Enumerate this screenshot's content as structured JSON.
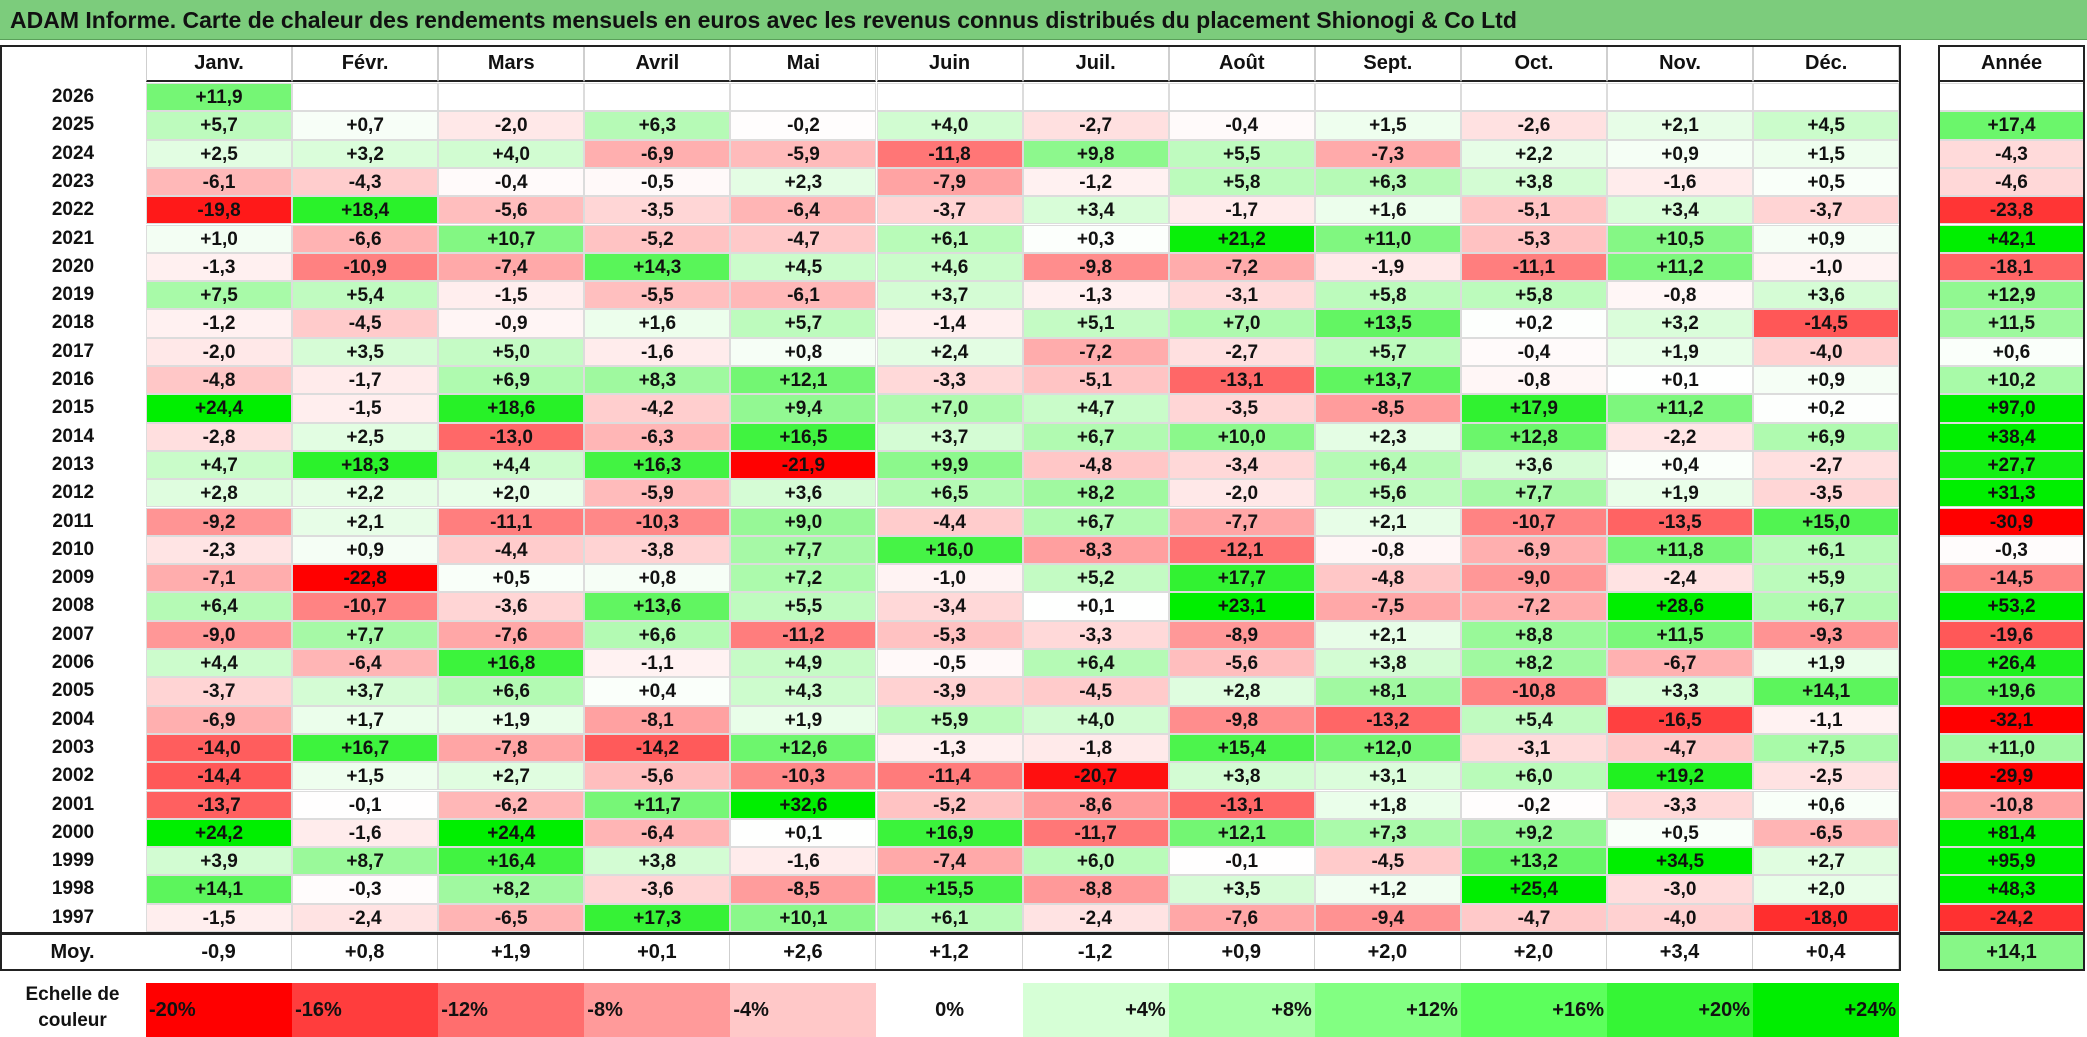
{
  "title": "ADAM Informe. Carte de chaleur des rendements mensuels en euros avec les revenus connus distribués du placement Shionogi & Co Ltd",
  "chart_data": {
    "type": "heatmap",
    "months": [
      "Janv.",
      "Févr.",
      "Mars",
      "Avril",
      "Mai",
      "Juin",
      "Juil.",
      "Août",
      "Sept.",
      "Oct.",
      "Nov.",
      "Déc."
    ],
    "year_header": "Année",
    "rows": [
      {
        "year": "2026",
        "values": [
          "+11,9",
          null,
          null,
          null,
          null,
          null,
          null,
          null,
          null,
          null,
          null,
          null
        ],
        "annual": null
      },
      {
        "year": "2025",
        "values": [
          "+5,7",
          "+0,7",
          "-2,0",
          "+6,3",
          "-0,2",
          "+4,0",
          "-2,7",
          "-0,4",
          "+1,5",
          "-2,6",
          "+2,1",
          "+4,5"
        ],
        "annual": "+17,4"
      },
      {
        "year": "2024",
        "values": [
          "+2,5",
          "+3,2",
          "+4,0",
          "-6,9",
          "-5,9",
          "-11,8",
          "+9,8",
          "+5,5",
          "-7,3",
          "+2,2",
          "+0,9",
          "+1,5"
        ],
        "annual": "-4,3"
      },
      {
        "year": "2023",
        "values": [
          "-6,1",
          "-4,3",
          "-0,4",
          "-0,5",
          "+2,3",
          "-7,9",
          "-1,2",
          "+5,8",
          "+6,3",
          "+3,8",
          "-1,6",
          "+0,5"
        ],
        "annual": "-4,6"
      },
      {
        "year": "2022",
        "values": [
          "-19,8",
          "+18,4",
          "-5,6",
          "-3,5",
          "-6,4",
          "-3,7",
          "+3,4",
          "-1,7",
          "+1,6",
          "-5,1",
          "+3,4",
          "-3,7"
        ],
        "annual": "-23,8"
      },
      {
        "year": "2021",
        "values": [
          "+1,0",
          "-6,6",
          "+10,7",
          "-5,2",
          "-4,7",
          "+6,1",
          "+0,3",
          "+21,2",
          "+11,0",
          "-5,3",
          "+10,5",
          "+0,9"
        ],
        "annual": "+42,1"
      },
      {
        "year": "2020",
        "values": [
          "-1,3",
          "-10,9",
          "-7,4",
          "+14,3",
          "+4,5",
          "+4,6",
          "-9,8",
          "-7,2",
          "-1,9",
          "-11,1",
          "+11,2",
          "-1,0"
        ],
        "annual": "-18,1"
      },
      {
        "year": "2019",
        "values": [
          "+7,5",
          "+5,4",
          "-1,5",
          "-5,5",
          "-6,1",
          "+3,7",
          "-1,3",
          "-3,1",
          "+5,8",
          "+5,8",
          "-0,8",
          "+3,6"
        ],
        "annual": "+12,9"
      },
      {
        "year": "2018",
        "values": [
          "-1,2",
          "-4,5",
          "-0,9",
          "+1,6",
          "+5,7",
          "-1,4",
          "+5,1",
          "+7,0",
          "+13,5",
          "+0,2",
          "+3,2",
          "-14,5"
        ],
        "annual": "+11,5"
      },
      {
        "year": "2017",
        "values": [
          "-2,0",
          "+3,5",
          "+5,0",
          "-1,6",
          "+0,8",
          "+2,4",
          "-7,2",
          "-2,7",
          "+5,7",
          "-0,4",
          "+1,9",
          "-4,0"
        ],
        "annual": "+0,6"
      },
      {
        "year": "2016",
        "values": [
          "-4,8",
          "-1,7",
          "+6,9",
          "+8,3",
          "+12,1",
          "-3,3",
          "-5,1",
          "-13,1",
          "+13,7",
          "-0,8",
          "+0,1",
          "+0,9"
        ],
        "annual": "+10,2"
      },
      {
        "year": "2015",
        "values": [
          "+24,4",
          "-1,5",
          "+18,6",
          "-4,2",
          "+9,4",
          "+7,0",
          "+4,7",
          "-3,5",
          "-8,5",
          "+17,9",
          "+11,2",
          "+0,2"
        ],
        "annual": "+97,0"
      },
      {
        "year": "2014",
        "values": [
          "-2,8",
          "+2,5",
          "-13,0",
          "-6,3",
          "+16,5",
          "+3,7",
          "+6,7",
          "+10,0",
          "+2,3",
          "+12,8",
          "-2,2",
          "+6,9"
        ],
        "annual": "+38,4"
      },
      {
        "year": "2013",
        "values": [
          "+4,7",
          "+18,3",
          "+4,4",
          "+16,3",
          "-21,9",
          "+9,9",
          "-4,8",
          "-3,4",
          "+6,4",
          "+3,6",
          "+0,4",
          "-2,7"
        ],
        "annual": "+27,7"
      },
      {
        "year": "2012",
        "values": [
          "+2,8",
          "+2,2",
          "+2,0",
          "-5,9",
          "+3,6",
          "+6,5",
          "+8,2",
          "-2,0",
          "+5,6",
          "+7,7",
          "+1,9",
          "-3,5"
        ],
        "annual": "+31,3"
      },
      {
        "year": "2011",
        "values": [
          "-9,2",
          "+2,1",
          "-11,1",
          "-10,3",
          "+9,0",
          "-4,4",
          "+6,7",
          "-7,7",
          "+2,1",
          "-10,7",
          "-13,5",
          "+15,0"
        ],
        "annual": "-30,9"
      },
      {
        "year": "2010",
        "values": [
          "-2,3",
          "+0,9",
          "-4,4",
          "-3,8",
          "+7,7",
          "+16,0",
          "-8,3",
          "-12,1",
          "-0,8",
          "-6,9",
          "+11,8",
          "+6,1"
        ],
        "annual": "-0,3"
      },
      {
        "year": "2009",
        "values": [
          "-7,1",
          "-22,8",
          "+0,5",
          "+0,8",
          "+7,2",
          "-1,0",
          "+5,2",
          "+17,7",
          "-4,8",
          "-9,0",
          "-2,4",
          "+5,9"
        ],
        "annual": "-14,5"
      },
      {
        "year": "2008",
        "values": [
          "+6,4",
          "-10,7",
          "-3,6",
          "+13,6",
          "+5,5",
          "-3,4",
          "+0,1",
          "+23,1",
          "-7,5",
          "-7,2",
          "+28,6",
          "+6,7"
        ],
        "annual": "+53,2"
      },
      {
        "year": "2007",
        "values": [
          "-9,0",
          "+7,7",
          "-7,6",
          "+6,6",
          "-11,2",
          "-5,3",
          "-3,3",
          "-8,9",
          "+2,1",
          "+8,8",
          "+11,5",
          "-9,3"
        ],
        "annual": "-19,6"
      },
      {
        "year": "2006",
        "values": [
          "+4,4",
          "-6,4",
          "+16,8",
          "-1,1",
          "+4,9",
          "-0,5",
          "+6,4",
          "-5,6",
          "+3,8",
          "+8,2",
          "-6,7",
          "+1,9"
        ],
        "annual": "+26,4"
      },
      {
        "year": "2005",
        "values": [
          "-3,7",
          "+3,7",
          "+6,6",
          "+0,4",
          "+4,3",
          "-3,9",
          "-4,5",
          "+2,8",
          "+8,1",
          "-10,8",
          "+3,3",
          "+14,1"
        ],
        "annual": "+19,6"
      },
      {
        "year": "2004",
        "values": [
          "-6,9",
          "+1,7",
          "+1,9",
          "-8,1",
          "+1,9",
          "+5,9",
          "+4,0",
          "-9,8",
          "-13,2",
          "+5,4",
          "-16,5",
          "-1,1"
        ],
        "annual": "-32,1"
      },
      {
        "year": "2003",
        "values": [
          "-14,0",
          "+16,7",
          "-7,8",
          "-14,2",
          "+12,6",
          "-1,3",
          "-1,8",
          "+15,4",
          "+12,0",
          "-3,1",
          "-4,7",
          "+7,5"
        ],
        "annual": "+11,0"
      },
      {
        "year": "2002",
        "values": [
          "-14,4",
          "+1,5",
          "+2,7",
          "-5,6",
          "-10,3",
          "-11,4",
          "-20,7",
          "+3,8",
          "+3,1",
          "+6,0",
          "+19,2",
          "-2,5"
        ],
        "annual": "-29,9"
      },
      {
        "year": "2001",
        "values": [
          "-13,7",
          "-0,1",
          "-6,2",
          "+11,7",
          "+32,6",
          "-5,2",
          "-8,6",
          "-13,1",
          "+1,8",
          "-0,2",
          "-3,3",
          "+0,6"
        ],
        "annual": "-10,8"
      },
      {
        "year": "2000",
        "values": [
          "+24,2",
          "-1,6",
          "+24,4",
          "-6,4",
          "+0,1",
          "+16,9",
          "-11,7",
          "+12,1",
          "+7,3",
          "+9,2",
          "+0,5",
          "-6,5"
        ],
        "annual": "+81,4"
      },
      {
        "year": "1999",
        "values": [
          "+3,9",
          "+8,7",
          "+16,4",
          "+3,8",
          "-1,6",
          "-7,4",
          "+6,0",
          "-0,1",
          "-4,5",
          "+13,2",
          "+34,5",
          "+2,7"
        ],
        "annual": "+95,9"
      },
      {
        "year": "1998",
        "values": [
          "+14,1",
          "-0,3",
          "+8,2",
          "-3,6",
          "-8,5",
          "+15,5",
          "-8,8",
          "+3,5",
          "+1,2",
          "+25,4",
          "-3,0",
          "+2,0"
        ],
        "annual": "+48,3"
      },
      {
        "year": "1997",
        "values": [
          "-1,5",
          "-2,4",
          "-6,5",
          "+17,3",
          "+10,1",
          "+6,1",
          "-2,4",
          "-7,6",
          "-9,4",
          "-4,7",
          "-4,0",
          "-18,0"
        ],
        "annual": "-24,2"
      }
    ],
    "average": {
      "label": "Moy.",
      "values": [
        "-0,9",
        "+0,8",
        "+1,9",
        "+0,1",
        "+2,6",
        "+1,2",
        "-1,2",
        "+0,9",
        "+2,0",
        "+2,0",
        "+3,4",
        "+0,4"
      ],
      "annual": "+14,1"
    },
    "scale": {
      "label": "Echelle de couleur",
      "steps": [
        "-20%",
        "-16%",
        "-12%",
        "-8%",
        "-4%",
        "0%",
        "+4%",
        "+8%",
        "+12%",
        "+16%",
        "+20%",
        "+24%"
      ],
      "colors": [
        "#ff0000",
        "#ff3d3d",
        "#ff6e6e",
        "#ff9a9a",
        "#ffc8c8",
        "#ffffff",
        "#d6ffd6",
        "#a8ffa8",
        "#82ff82",
        "#5cff5c",
        "#35f535",
        "#00ee00"
      ]
    }
  }
}
